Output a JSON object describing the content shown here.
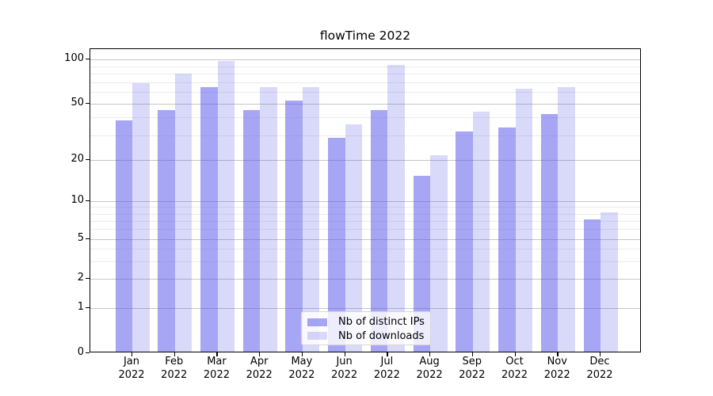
{
  "chart_data": {
    "type": "bar",
    "title": "flowTime 2022",
    "categories": [
      "Jan",
      "Feb",
      "Mar",
      "Apr",
      "May",
      "Jun",
      "Jul",
      "Aug",
      "Sep",
      "Oct",
      "Nov",
      "Dec"
    ],
    "x_year_label": "2022",
    "series": [
      {
        "name": "Nb of distinct IPs",
        "color": "rgba(77,77,233,0.5)",
        "color_hex_on_white": "#a6a6f4",
        "values": [
          37,
          44,
          63,
          44,
          51,
          28,
          44,
          15,
          31,
          33,
          41,
          7
        ]
      },
      {
        "name": "Nb of downloads",
        "color": "rgba(77,77,233,0.215)",
        "color_hex_on_white": "#d9d9f9",
        "values": [
          67,
          78,
          95,
          63,
          63,
          35,
          90,
          21,
          43,
          62,
          63,
          8
        ]
      }
    ],
    "yscale": "symlog",
    "ylim": [
      0,
      117
    ],
    "y_major_ticks": [
      100,
      50,
      20,
      10,
      5,
      2,
      1,
      0
    ],
    "y_minor_ticks": [
      3,
      4,
      6,
      7,
      8,
      9,
      30,
      40,
      60,
      70,
      80,
      90
    ],
    "grid": "both",
    "legend_position": "lower center",
    "colors": {
      "grid_major": "#c6c6c6",
      "grid_minor": "#ececec",
      "axis": "#000000",
      "title_text": "#000000"
    }
  }
}
